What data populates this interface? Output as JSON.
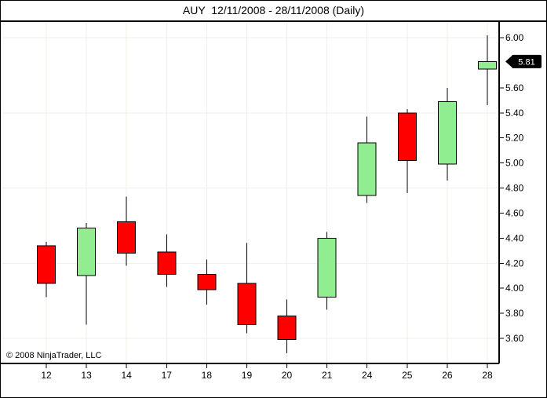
{
  "header": {
    "title": "AUY  12/11/2008 - 28/11/2008 (Daily)"
  },
  "footer": {
    "copyright": "© 2008 NinjaTrader, LLC"
  },
  "price_marker": {
    "label": "5.81",
    "value": 5.81,
    "bg_color": "#000000",
    "text_color": "#FFFFFF"
  },
  "chart_data": {
    "type": "candlestick",
    "title": "AUY  12/11/2008 - 28/11/2008 (Daily)",
    "symbol": "AUY",
    "interval": "Daily",
    "categories": [
      "12",
      "13",
      "14",
      "17",
      "18",
      "19",
      "20",
      "21",
      "24",
      "25",
      "26",
      "28"
    ],
    "series": [
      {
        "name": "AUY",
        "ohlc": [
          {
            "date": "12",
            "open": 4.34,
            "high": 4.37,
            "low": 3.93,
            "close": 4.04
          },
          {
            "date": "13",
            "open": 4.1,
            "high": 4.52,
            "low": 3.71,
            "close": 4.48
          },
          {
            "date": "14",
            "open": 4.53,
            "high": 4.73,
            "low": 4.18,
            "close": 4.28
          },
          {
            "date": "17",
            "open": 4.29,
            "high": 4.43,
            "low": 4.01,
            "close": 4.11
          },
          {
            "date": "18",
            "open": 4.11,
            "high": 4.23,
            "low": 3.87,
            "close": 3.99
          },
          {
            "date": "19",
            "open": 4.04,
            "high": 4.36,
            "low": 3.64,
            "close": 3.71
          },
          {
            "date": "20",
            "open": 3.78,
            "high": 3.91,
            "low": 3.48,
            "close": 3.59
          },
          {
            "date": "21",
            "open": 3.93,
            "high": 4.45,
            "low": 3.83,
            "close": 4.4
          },
          {
            "date": "24",
            "open": 4.74,
            "high": 5.37,
            "low": 4.68,
            "close": 5.16
          },
          {
            "date": "25",
            "open": 5.4,
            "high": 5.43,
            "low": 4.76,
            "close": 5.02
          },
          {
            "date": "26",
            "open": 4.99,
            "high": 5.6,
            "low": 4.86,
            "close": 5.49
          },
          {
            "date": "28",
            "open": 5.75,
            "high": 6.02,
            "low": 5.46,
            "close": 5.81
          }
        ]
      }
    ],
    "ylim": [
      3.45,
      6.05
    ],
    "y_ticks": [
      6.0,
      5.6,
      5.4,
      5.2,
      5.0,
      4.8,
      4.6,
      4.4,
      4.2,
      4.0,
      3.8,
      3.6
    ],
    "grid_y_values": [
      6.0,
      5.4,
      4.8,
      4.2,
      3.6
    ],
    "last_price": 5.81,
    "grid": "on",
    "legend_position": "none",
    "up_color": "#90EE90",
    "down_color": "#FF0000",
    "outline_color": "#000000",
    "grid_color": "#EFEFEA",
    "axis_color": "#000000",
    "background_color": "#FFFFFF"
  }
}
